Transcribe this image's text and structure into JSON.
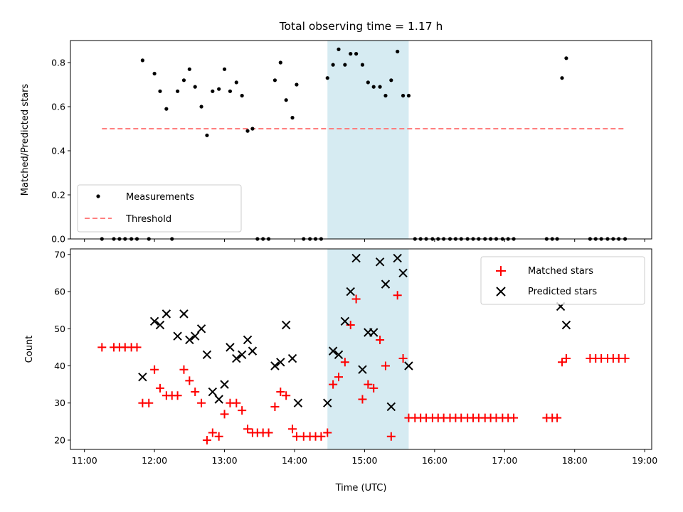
{
  "chart_data": [
    {
      "type": "scatter",
      "title": "Total observing time = 1.17 h",
      "ylabel": "Matched/Predicted stars",
      "xlabel": "",
      "xlim_hours": [
        10.8,
        19.1
      ],
      "ylim": [
        0,
        0.9
      ],
      "yticks": [
        "0.0",
        "0.2",
        "0.4",
        "0.6",
        "0.8"
      ],
      "legend": {
        "position": "lower left",
        "entries": [
          "Measurements",
          "Threshold"
        ]
      },
      "shaded_region_hours": [
        14.47,
        15.63
      ],
      "colors": {
        "measurements": "#000000",
        "threshold": "#ff7f7f",
        "shade": "#add8e6"
      },
      "threshold": {
        "value": 0.5,
        "x_hours": [
          11.25,
          18.72
        ]
      },
      "series": [
        {
          "name": "Measurements",
          "x_hours": [
            11.25,
            11.42,
            11.5,
            11.58,
            11.67,
            11.75,
            11.83,
            11.92,
            12.0,
            12.08,
            12.17,
            12.25,
            12.33,
            12.42,
            12.5,
            12.58,
            12.67,
            12.75,
            12.83,
            12.92,
            13.0,
            13.08,
            13.17,
            13.25,
            13.33,
            13.4,
            13.47,
            13.55,
            13.63,
            13.72,
            13.8,
            13.88,
            13.97,
            14.03,
            14.13,
            14.22,
            14.3,
            14.38,
            14.47,
            14.55,
            14.63,
            14.72,
            14.8,
            14.88,
            14.97,
            15.05,
            15.13,
            15.22,
            15.3,
            15.38,
            15.47,
            15.55,
            15.63,
            15.72,
            15.8,
            15.88,
            15.97,
            16.05,
            16.13,
            16.22,
            16.3,
            16.38,
            16.47,
            16.55,
            16.63,
            16.72,
            16.8,
            16.88,
            16.97,
            17.05,
            17.13,
            17.6,
            17.68,
            17.75,
            17.82,
            17.88,
            18.22,
            18.3,
            18.38,
            18.47,
            18.55,
            18.63,
            18.72
          ],
          "y": [
            0,
            0,
            0,
            0,
            0,
            0,
            0.81,
            0,
            0.75,
            0.67,
            0.59,
            0,
            0.67,
            0.72,
            0.77,
            0.69,
            0.6,
            0.47,
            0.67,
            0.68,
            0.77,
            0.67,
            0.71,
            0.65,
            0.49,
            0.5,
            0,
            0,
            0,
            0.72,
            0.8,
            0.63,
            0.55,
            0.7,
            0,
            0,
            0,
            0,
            0.73,
            0.79,
            0.86,
            0.79,
            0.84,
            0.84,
            0.79,
            0.71,
            0.69,
            0.69,
            0.65,
            0.72,
            0.85,
            0.65,
            0.65,
            0,
            0,
            0,
            0,
            0,
            0,
            0,
            0,
            0,
            0,
            0,
            0,
            0,
            0,
            0,
            0,
            0,
            0,
            0,
            0,
            0,
            0.73,
            0.82,
            0,
            0,
            0,
            0,
            0,
            0,
            0
          ]
        }
      ]
    },
    {
      "type": "scatter",
      "title": "",
      "xlabel": "Time (UTC)",
      "ylabel": "Count",
      "xlim_hours": [
        10.8,
        19.1
      ],
      "ylim": [
        17.5,
        71.5
      ],
      "yticks": [
        "20",
        "30",
        "40",
        "50",
        "60",
        "70"
      ],
      "xticks": [
        "11:00",
        "12:00",
        "13:00",
        "14:00",
        "15:00",
        "16:00",
        "17:00",
        "18:00",
        "19:00"
      ],
      "legend": {
        "position": "upper right",
        "entries": [
          "Matched stars",
          "Predicted stars"
        ]
      },
      "shaded_region_hours": [
        14.47,
        15.63
      ],
      "colors": {
        "matched": "#ff0000",
        "predicted": "#000000",
        "shade": "#add8e6"
      },
      "series": [
        {
          "name": "Matched stars",
          "x_hours": [
            11.25,
            11.42,
            11.5,
            11.58,
            11.67,
            11.75,
            11.83,
            11.92,
            12.0,
            12.08,
            12.17,
            12.25,
            12.33,
            12.42,
            12.5,
            12.58,
            12.67,
            12.75,
            12.83,
            12.92,
            13.0,
            13.08,
            13.17,
            13.25,
            13.33,
            13.4,
            13.47,
            13.55,
            13.63,
            13.72,
            13.8,
            13.88,
            13.97,
            14.03,
            14.13,
            14.22,
            14.3,
            14.38,
            14.47,
            14.55,
            14.63,
            14.72,
            14.8,
            14.88,
            14.97,
            15.05,
            15.13,
            15.22,
            15.3,
            15.38,
            15.47,
            15.55,
            15.63,
            15.72,
            15.8,
            15.88,
            15.97,
            16.05,
            16.13,
            16.22,
            16.3,
            16.38,
            16.47,
            16.55,
            16.63,
            16.72,
            16.8,
            16.88,
            16.97,
            17.05,
            17.13,
            17.6,
            17.68,
            17.75,
            17.82,
            17.88,
            18.22,
            18.3,
            18.38,
            18.47,
            18.55,
            18.63,
            18.72
          ],
          "y": [
            45,
            45,
            45,
            45,
            45,
            45,
            30,
            30,
            39,
            34,
            32,
            32,
            32,
            39,
            36,
            33,
            30,
            20,
            22,
            21,
            27,
            30,
            30,
            28,
            23,
            22,
            22,
            22,
            22,
            29,
            33,
            32,
            23,
            21,
            21,
            21,
            21,
            21,
            22,
            35,
            37,
            41,
            51,
            58,
            31,
            35,
            34,
            47,
            40,
            21,
            59,
            42,
            26,
            26,
            26,
            26,
            26,
            26,
            26,
            26,
            26,
            26,
            26,
            26,
            26,
            26,
            26,
            26,
            26,
            26,
            26,
            26,
            26,
            26,
            41,
            42,
            42,
            42,
            42,
            42,
            42,
            42,
            42
          ]
        },
        {
          "name": "Predicted stars",
          "x_hours": [
            11.83,
            12.0,
            12.08,
            12.17,
            12.33,
            12.42,
            12.5,
            12.58,
            12.67,
            12.75,
            12.83,
            12.92,
            13.0,
            13.08,
            13.17,
            13.25,
            13.33,
            13.4,
            13.72,
            13.8,
            13.88,
            13.97,
            14.05,
            14.47,
            14.55,
            14.63,
            14.72,
            14.8,
            14.88,
            14.97,
            15.05,
            15.13,
            15.22,
            15.3,
            15.38,
            15.47,
            15.55,
            15.63,
            17.8,
            17.88
          ],
          "y": [
            37,
            52,
            51,
            54,
            48,
            54,
            47,
            48,
            50,
            43,
            33,
            31,
            35,
            45,
            42,
            43,
            47,
            44,
            40,
            41,
            51,
            42,
            30,
            30,
            44,
            43,
            52,
            60,
            69,
            39,
            49,
            49,
            68,
            62,
            29,
            69,
            65,
            40,
            56,
            51
          ]
        }
      ]
    }
  ]
}
